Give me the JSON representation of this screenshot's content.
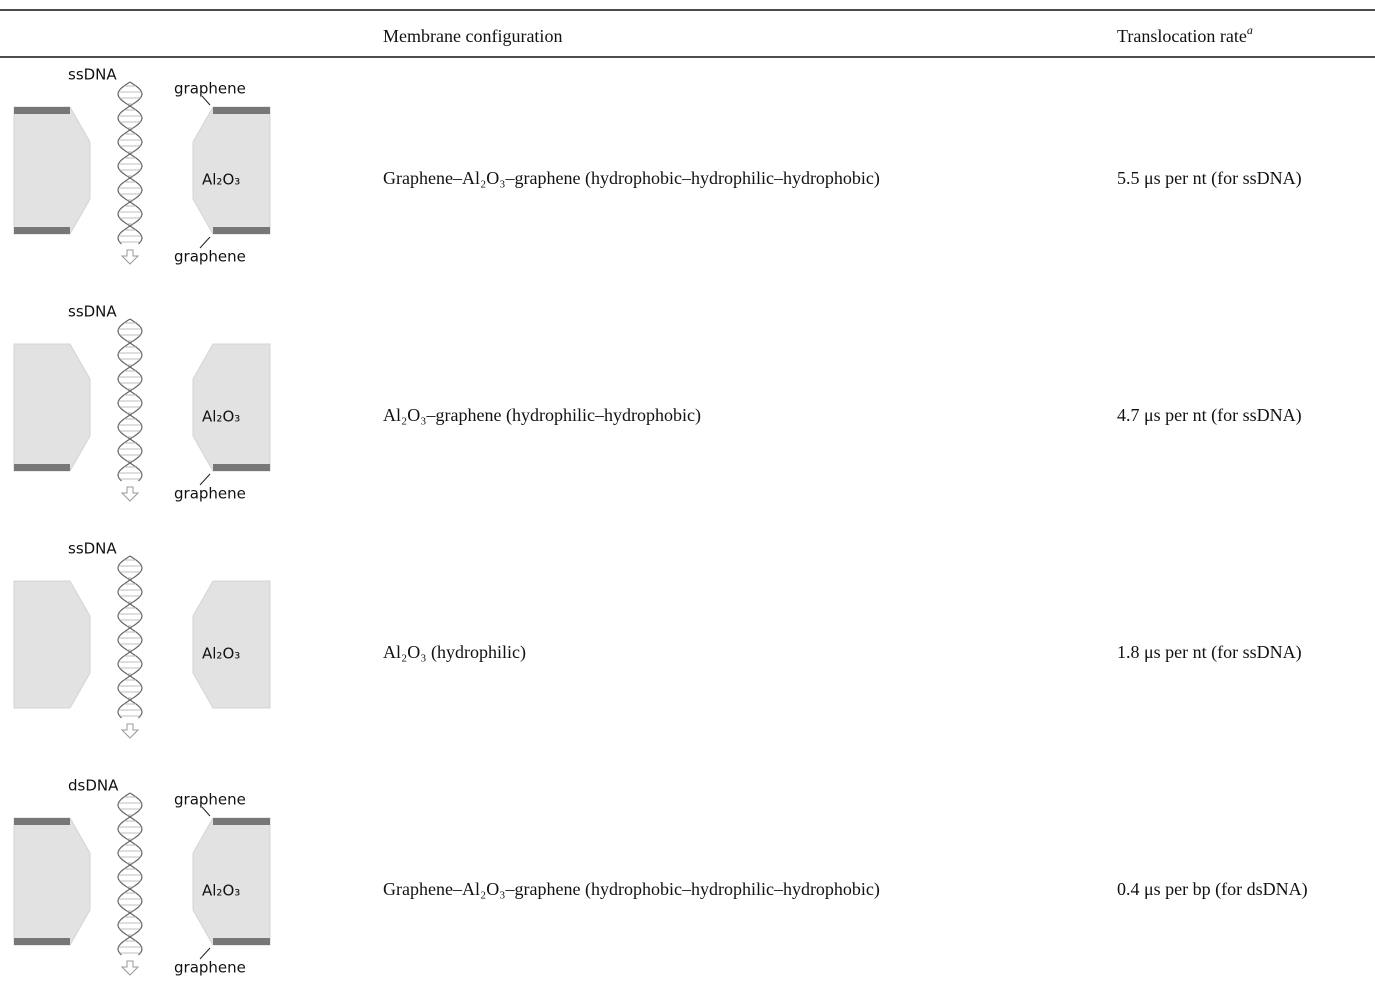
{
  "table": {
    "header": [
      "Membrane configuration",
      "Translocation rate"
    ],
    "header_note": "a",
    "rows": [
      {
        "diagram": {
          "strand": "ssDNA",
          "top_label": "graphene",
          "material": "Al₂O₃",
          "bottom_label": "graphene"
        },
        "configuration": "Graphene–Al₂O₃–graphene (hydrophobic–hydrophilic–hydrophobic)",
        "rate": "5.5 μs per nt (for ssDNA)"
      },
      {
        "diagram": {
          "strand": "ssDNA",
          "material": "Al₂O₃",
          "bottom_label": "graphene"
        },
        "configuration": "Al₂O₃–graphene (hydrophilic–hydrophobic)",
        "rate": "4.7 μs per nt (for ssDNA)"
      },
      {
        "diagram": {
          "strand": "ssDNA",
          "material": "Al₂O₃"
        },
        "configuration": "Al₂O₃ (hydrophilic)",
        "rate": "1.8 μs per nt (for ssDNA)"
      },
      {
        "diagram": {
          "strand": "dsDNA",
          "top_label": "graphene",
          "material": "Al₂O₃",
          "bottom_label": "graphene"
        },
        "configuration": "Graphene–Al₂O₃–graphene (hydrophobic–hydrophilic–hydrophobic)",
        "rate": "0.4 μs per bp (for dsDNA)"
      }
    ]
  }
}
